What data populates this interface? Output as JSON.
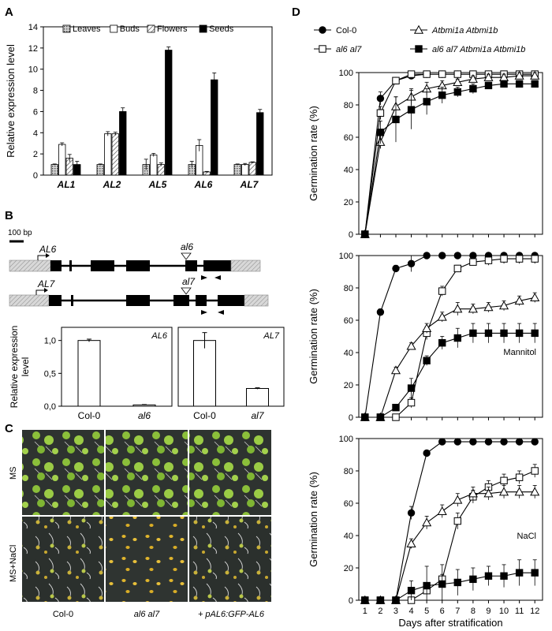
{
  "panels": {
    "A": "A",
    "B": "B",
    "C": "C",
    "D": "D"
  },
  "colors": {
    "leaves": "#c8c8c8",
    "buds": "#ffffff",
    "flowers": "#e6e6e6",
    "seeds": "#000000",
    "hatch": "#555555",
    "utr": "#cfcfcf",
    "seedling_bg": "#2a2f2a"
  },
  "panel_b": {
    "scale_label": "100 bp",
    "gene1": "AL6",
    "mut1": "al6",
    "gene2": "AL7",
    "mut2": "al7"
  },
  "panel_c": {
    "row_labels": [
      "MS",
      "MS+NaCl"
    ],
    "col_labels": [
      "Col-0",
      "al6 al7",
      "+ pAL6:GFP-AL6"
    ]
  },
  "chart_data": [
    {
      "type": "bar",
      "ylabel": "Relative expression level",
      "ylim": [
        0,
        14
      ],
      "yticks": [
        0,
        2,
        4,
        6,
        8,
        10,
        12,
        14
      ],
      "categories": [
        "AL1",
        "AL2",
        "AL5",
        "AL6",
        "AL7"
      ],
      "legend": "top",
      "series": [
        {
          "name": "Leaves",
          "fill": "leaves",
          "values": [
            1.0,
            1.0,
            1.0,
            1.0,
            1.0
          ],
          "err": [
            0.05,
            0.05,
            0.5,
            0.3,
            0.05
          ]
        },
        {
          "name": "Buds",
          "fill": "buds",
          "values": [
            2.9,
            3.9,
            1.9,
            2.8,
            1.0
          ],
          "err": [
            0.15,
            0.2,
            0.15,
            0.55,
            0.1
          ]
        },
        {
          "name": "Flowers",
          "fill": "flowers",
          "values": [
            1.6,
            3.9,
            1.0,
            0.3,
            1.2
          ],
          "err": [
            0.35,
            0.15,
            0.15,
            0.05,
            0.05
          ]
        },
        {
          "name": "Seeds",
          "fill": "seeds",
          "values": [
            1.0,
            6.0,
            11.8,
            9.0,
            5.9
          ],
          "err": [
            0.3,
            0.35,
            0.3,
            0.65,
            0.3
          ]
        }
      ]
    },
    {
      "type": "bar",
      "ylabel": "Relative expression level",
      "ylim": [
        0,
        1.2
      ],
      "yticks": [
        "0,0",
        "0,5",
        "1,0"
      ],
      "annotation": "AL6",
      "categories": [
        "Col-0",
        "al6"
      ],
      "values": [
        1.0,
        0.02
      ],
      "err": [
        0.02,
        0.005
      ]
    },
    {
      "type": "bar",
      "ylim": [
        0,
        1.2
      ],
      "annotation": "AL7",
      "categories": [
        "Col-0",
        "al7"
      ],
      "values": [
        1.0,
        0.27
      ],
      "err": [
        0.12,
        0.01
      ]
    },
    {
      "type": "line",
      "ylabel": "Germination rate (%)",
      "xlabel": "Days after stratification",
      "x": [
        1,
        2,
        3,
        4,
        5,
        6,
        7,
        8,
        9,
        10,
        11,
        12
      ],
      "ylim": [
        0,
        100
      ],
      "yticks": [
        0,
        20,
        40,
        60,
        80,
        100
      ],
      "legend": "top",
      "panels": [
        {
          "annotation": "",
          "series": [
            {
              "name": "Col-0",
              "marker": "circle-filled",
              "values": [
                0,
                84,
                95,
                98,
                99,
                99,
                99,
                99,
                99,
                99,
                99,
                99
              ],
              "err": [
                0,
                4,
                1,
                1,
                1,
                1,
                1,
                1,
                1,
                1,
                1,
                1
              ]
            },
            {
              "name": "al6 al7",
              "marker": "square-open",
              "values": [
                0,
                75,
                95,
                99,
                99,
                99,
                99,
                99,
                99,
                99,
                99,
                99
              ],
              "err": [
                0,
                4,
                1,
                1,
                1,
                1,
                1,
                1,
                1,
                1,
                1,
                1
              ]
            },
            {
              "name": "Atbmi1a Atbmi1b",
              "marker": "triangle-open",
              "values": [
                0,
                57,
                79,
                85,
                90,
                92,
                94,
                96,
                97,
                97,
                98,
                98
              ],
              "err": [
                0,
                4,
                6,
                5,
                4,
                3,
                2,
                2,
                2,
                2,
                2,
                2
              ]
            },
            {
              "name": "al6 al7 Atbmi1a Atbmi1b",
              "marker": "square-filled",
              "values": [
                0,
                63,
                71,
                77,
                82,
                86,
                88,
                90,
                92,
                93,
                93,
                93
              ],
              "err": [
                0,
                7,
                14,
                12,
                8,
                5,
                3,
                3,
                2,
                2,
                2,
                2
              ]
            }
          ]
        },
        {
          "annotation": "Mannitol",
          "series": [
            {
              "name": "Col-0",
              "marker": "circle-filled",
              "values": [
                0,
                65,
                92,
                95,
                100,
                100,
                100,
                100,
                100,
                100,
                100,
                100
              ],
              "err": [
                0,
                2,
                2,
                5,
                1,
                1,
                1,
                1,
                1,
                1,
                1,
                1
              ]
            },
            {
              "name": "al6 al7",
              "marker": "square-open",
              "values": [
                0,
                0,
                0,
                9,
                52,
                78,
                92,
                96,
                97,
                98,
                98,
                98
              ],
              "err": [
                0,
                0,
                0,
                3,
                4,
                3,
                2,
                2,
                3,
                3,
                3,
                3
              ]
            },
            {
              "name": "Atbmi1a Atbmi1b",
              "marker": "triangle-open",
              "values": [
                0,
                0,
                29,
                44,
                55,
                62,
                67,
                67,
                68,
                69,
                72,
                74
              ],
              "err": [
                0,
                0,
                2,
                2,
                3,
                3,
                4,
                3,
                3,
                3,
                3,
                3
              ]
            },
            {
              "name": "al6 al7 Atbmi1a Atbmi1b",
              "marker": "square-filled",
              "values": [
                0,
                0,
                6,
                18,
                35,
                46,
                49,
                52,
                52,
                52,
                52,
                52
              ],
              "err": [
                0,
                0,
                2,
                6,
                3,
                4,
                6,
                6,
                6,
                6,
                6,
                6
              ]
            }
          ]
        },
        {
          "annotation": "NaCl",
          "series": [
            {
              "name": "Col-0",
              "marker": "circle-filled",
              "values": [
                0,
                0,
                0,
                54,
                91,
                98,
                98,
                98,
                98,
                98,
                98,
                98
              ],
              "err": [
                0,
                0,
                0,
                4,
                1,
                1,
                1,
                1,
                1,
                1,
                1,
                1
              ]
            },
            {
              "name": "al6 al7",
              "marker": "square-open",
              "values": [
                0,
                0,
                0,
                0,
                6,
                13,
                49,
                64,
                70,
                74,
                76,
                80
              ],
              "err": [
                0,
                0,
                0,
                0,
                2,
                3,
                5,
                4,
                4,
                4,
                4,
                4
              ]
            },
            {
              "name": "Atbmi1a Atbmi1b",
              "marker": "triangle-open",
              "values": [
                0,
                0,
                0,
                35,
                48,
                55,
                62,
                66,
                66,
                67,
                67,
                67
              ],
              "err": [
                0,
                0,
                0,
                3,
                4,
                4,
                4,
                4,
                4,
                4,
                4,
                4
              ]
            },
            {
              "name": "al6 al7 Atbmi1a Atbmi1b",
              "marker": "square-filled",
              "values": [
                0,
                0,
                0,
                6,
                9,
                10,
                11,
                13,
                15,
                15,
                17,
                17
              ],
              "err": [
                0,
                0,
                0,
                6,
                12,
                12,
                8,
                7,
                6,
                7,
                8,
                8
              ]
            }
          ]
        }
      ]
    }
  ]
}
